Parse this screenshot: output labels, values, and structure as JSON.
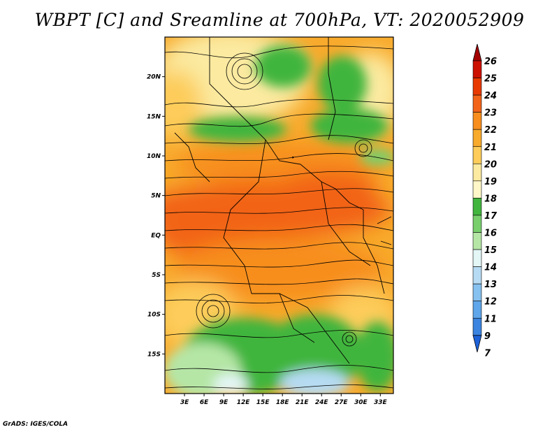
{
  "title": "WBPT [C] and Sreamline at 700hPa, VT: 2020052909",
  "credit": "GrADS: IGES/COLA",
  "map": {
    "lon_range": [
      0,
      35
    ],
    "lat_range": [
      -20,
      25
    ],
    "lat_ticks": [
      "20N",
      "15N",
      "10N",
      "5N",
      "EQ",
      "5S",
      "10S",
      "15S"
    ],
    "lon_ticks": [
      "3E",
      "6E",
      "9E",
      "12E",
      "15E",
      "18E",
      "21E",
      "24E",
      "27E",
      "30E",
      "33E"
    ]
  },
  "colorbar": {
    "labels": [
      "26",
      "25",
      "24",
      "23",
      "22",
      "21",
      "20",
      "19",
      "18",
      "17",
      "16",
      "15",
      "14",
      "13",
      "12",
      "11",
      "9",
      "7"
    ],
    "colors": [
      "#a50000",
      "#cc1100",
      "#e83a00",
      "#f26419",
      "#f78e1e",
      "#f8aa2c",
      "#fdcc5a",
      "#fbeaa0",
      "#fff7c8",
      "#41b53e",
      "#78cf6c",
      "#b5e6a6",
      "#e4f6f6",
      "#b6dbf3",
      "#86c1ef",
      "#5fa6ea",
      "#3b84e0",
      "#1e62d8"
    ]
  }
}
